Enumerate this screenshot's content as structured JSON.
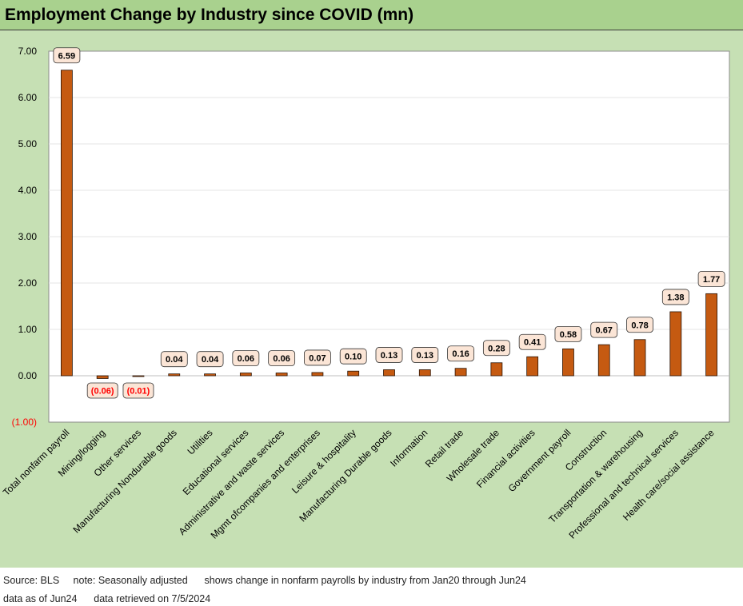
{
  "page": {
    "title": "Employment Change by Industry since COVID (mn)"
  },
  "footer": {
    "line1": "Source: BLS     note: Seasonally adjusted      shows change in nonfarm payrolls by industry from Jan20 through Jun24",
    "line2": "data as of Jun24      data retrieved on 7/5/2024"
  },
  "colors": {
    "bar": "#c55a11",
    "bar_outline": "#2b1405",
    "label_fill": "#fbe5d6",
    "negative_text": "#ff0000",
    "background": "#c6e0b4",
    "title_bar": "#a9d18e"
  },
  "chart_data": {
    "type": "bar",
    "title": "Employment Change by Industry since COVID (mn)",
    "xlabel": "",
    "ylabel": "",
    "ylim": [
      -1,
      7
    ],
    "yticks": [
      7,
      6,
      5,
      4,
      3,
      2,
      1,
      0,
      -1
    ],
    "ytick_labels": [
      "7.00",
      "6.00",
      "5.00",
      "4.00",
      "3.00",
      "2.00",
      "1.00",
      "0.00",
      "(1.00)"
    ],
    "grid": true,
    "legend": "none",
    "categories": [
      "Total nonfarm payroll",
      "Mining/logging",
      "Other services",
      "Manufacturing Nondurable goods",
      "Utilities",
      "Educational services",
      "Administrative and waste services",
      "Mgmt ofcompanies and enterprises",
      "Leisure & hospitality",
      "Manufacturing Durable goods",
      "Information",
      "Retail trade",
      "Wholesale trade",
      "Financial activities",
      "Government payroll",
      "Construction",
      "Transportation & warehousing",
      "Professional and technical services",
      "Health care/social assistance"
    ],
    "values": [
      6.59,
      -0.06,
      -0.01,
      0.04,
      0.04,
      0.06,
      0.06,
      0.07,
      0.1,
      0.13,
      0.13,
      0.16,
      0.28,
      0.41,
      0.58,
      0.67,
      0.78,
      1.38,
      1.77
    ],
    "data_labels": [
      "6.59",
      "(0.06)",
      "(0.01)",
      "0.04",
      "0.04",
      "0.06",
      "0.06",
      "0.07",
      "0.10",
      "0.13",
      "0.13",
      "0.16",
      "0.28",
      "0.41",
      "0.58",
      "0.67",
      "0.78",
      "1.38",
      "1.77"
    ]
  }
}
